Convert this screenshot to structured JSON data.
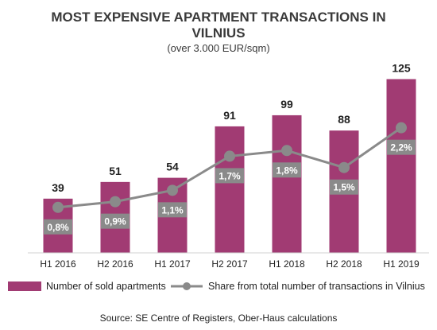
{
  "chart_data": {
    "type": "bar",
    "title_lines": [
      "MOST EXPENSIVE APARTMENT TRANSACTIONS IN",
      "VILNIUS"
    ],
    "subtitle": "(over 3.000 EUR/sqm)",
    "categories": [
      "H1 2016",
      "H2 2016",
      "H1 2017",
      "H2 2017",
      "H1 2018",
      "H2 2018",
      "H1 2019"
    ],
    "series": [
      {
        "name": "Number of sold apartments",
        "type": "bar",
        "values": [
          39,
          51,
          54,
          91,
          99,
          88,
          125
        ],
        "value_labels": [
          "39",
          "51",
          "54",
          "91",
          "99",
          "88",
          "125"
        ],
        "color": "#a13b73"
      },
      {
        "name": "Share from total number of transactions in Vilnius",
        "type": "line",
        "values": [
          0.8,
          0.9,
          1.1,
          1.7,
          1.8,
          1.5,
          2.2
        ],
        "value_labels": [
          "0,8%",
          "0,9%",
          "1,1%",
          "1,7%",
          "1,8%",
          "1,5%",
          "2,2%"
        ],
        "color": "#8a8a8a",
        "unit": "%"
      }
    ],
    "ylim_bars": [
      0,
      135
    ],
    "ylim_line": [
      0,
      3.3
    ],
    "grid": false,
    "legend_position": "bottom",
    "source": "Source: SE Centre of Registers, Ober-Haus calculations"
  }
}
